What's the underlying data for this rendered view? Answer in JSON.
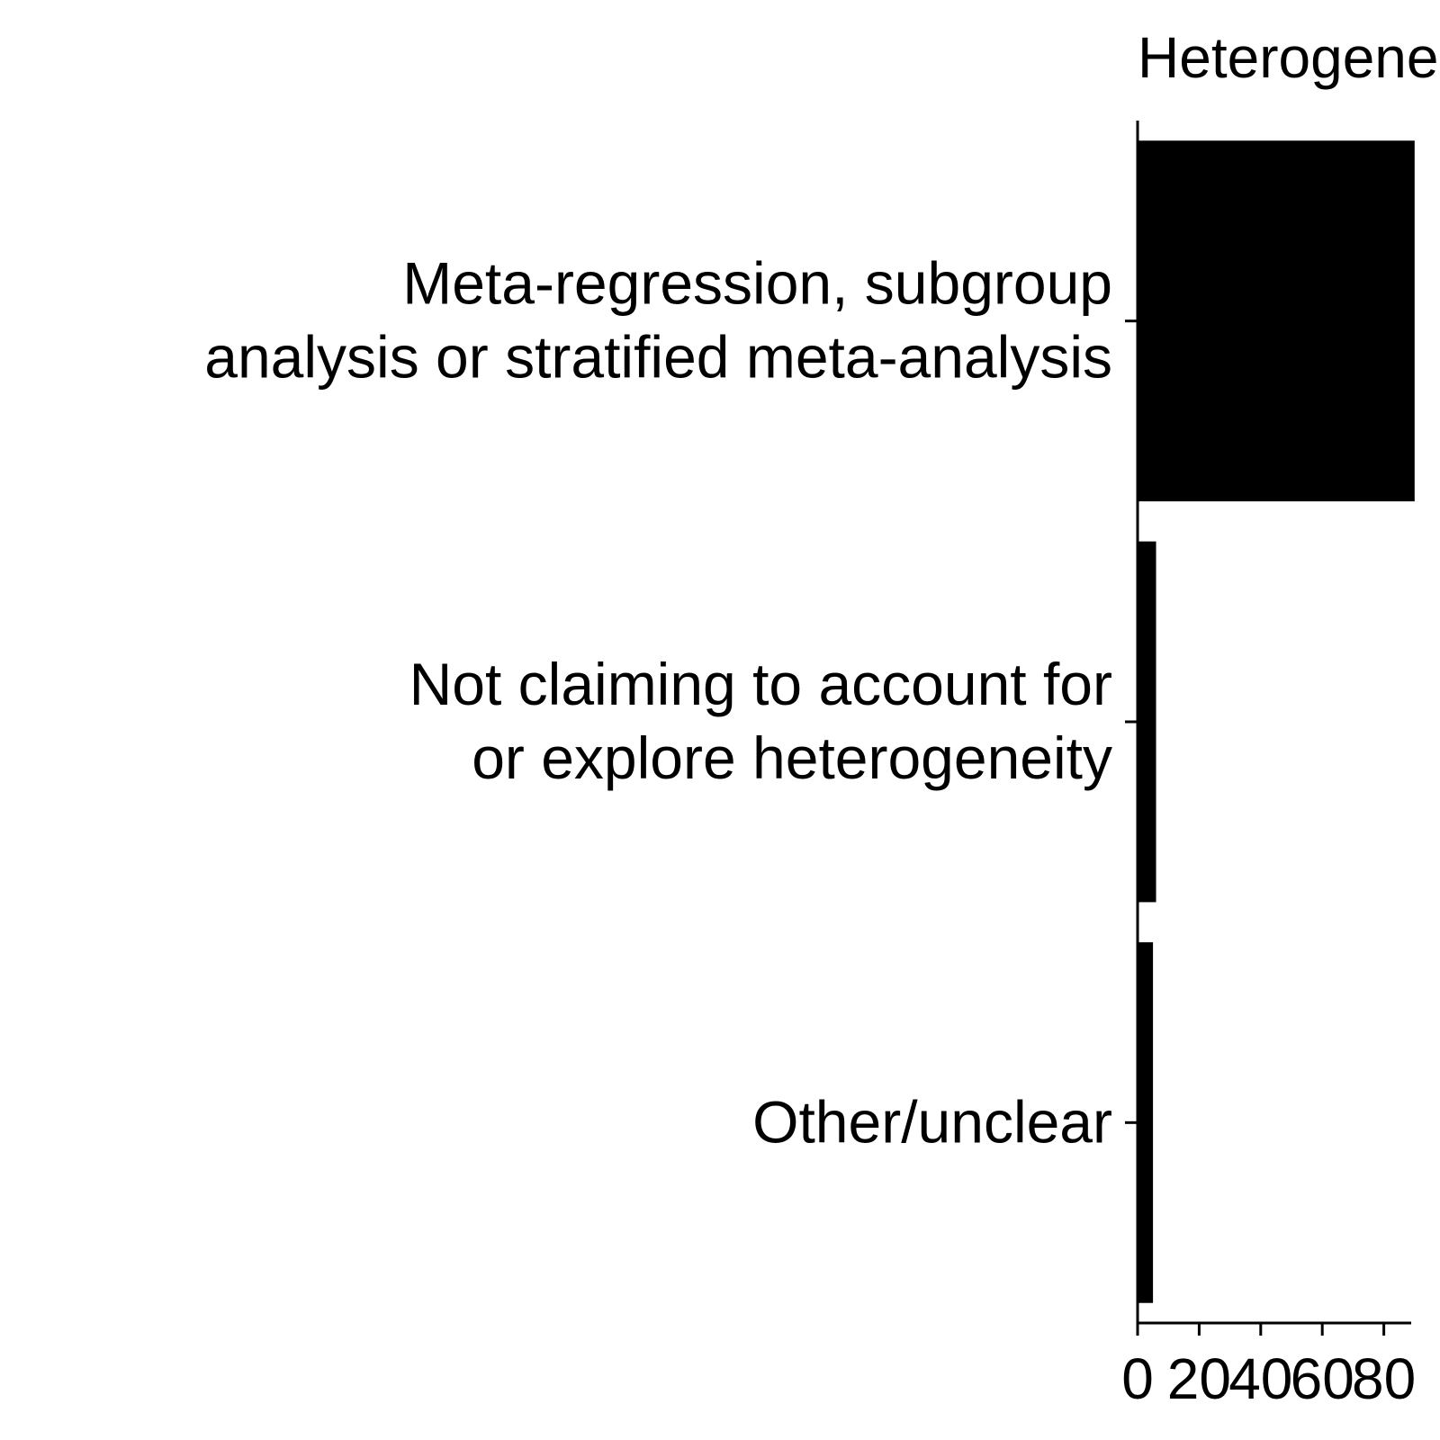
{
  "chart_data": {
    "type": "bar",
    "orientation": "horizontal",
    "title": "Heterogeneity",
    "xlabel": "",
    "ylabel": "",
    "categories": [
      [
        "Meta-regression, subgroup",
        "analysis or stratified meta-analysis"
      ],
      [
        "Not claiming to account for",
        "or explore heterogeneity"
      ],
      [
        "Other/unclear"
      ]
    ],
    "values": [
      90,
      6,
      5
    ],
    "xlim": [
      0,
      90
    ],
    "xticks": [
      0,
      20,
      40,
      60,
      80
    ],
    "xtick_labels": [
      "0",
      "20",
      "40",
      "60",
      "80"
    ],
    "grid": false,
    "legend": "none",
    "bar_color": "#000000"
  }
}
